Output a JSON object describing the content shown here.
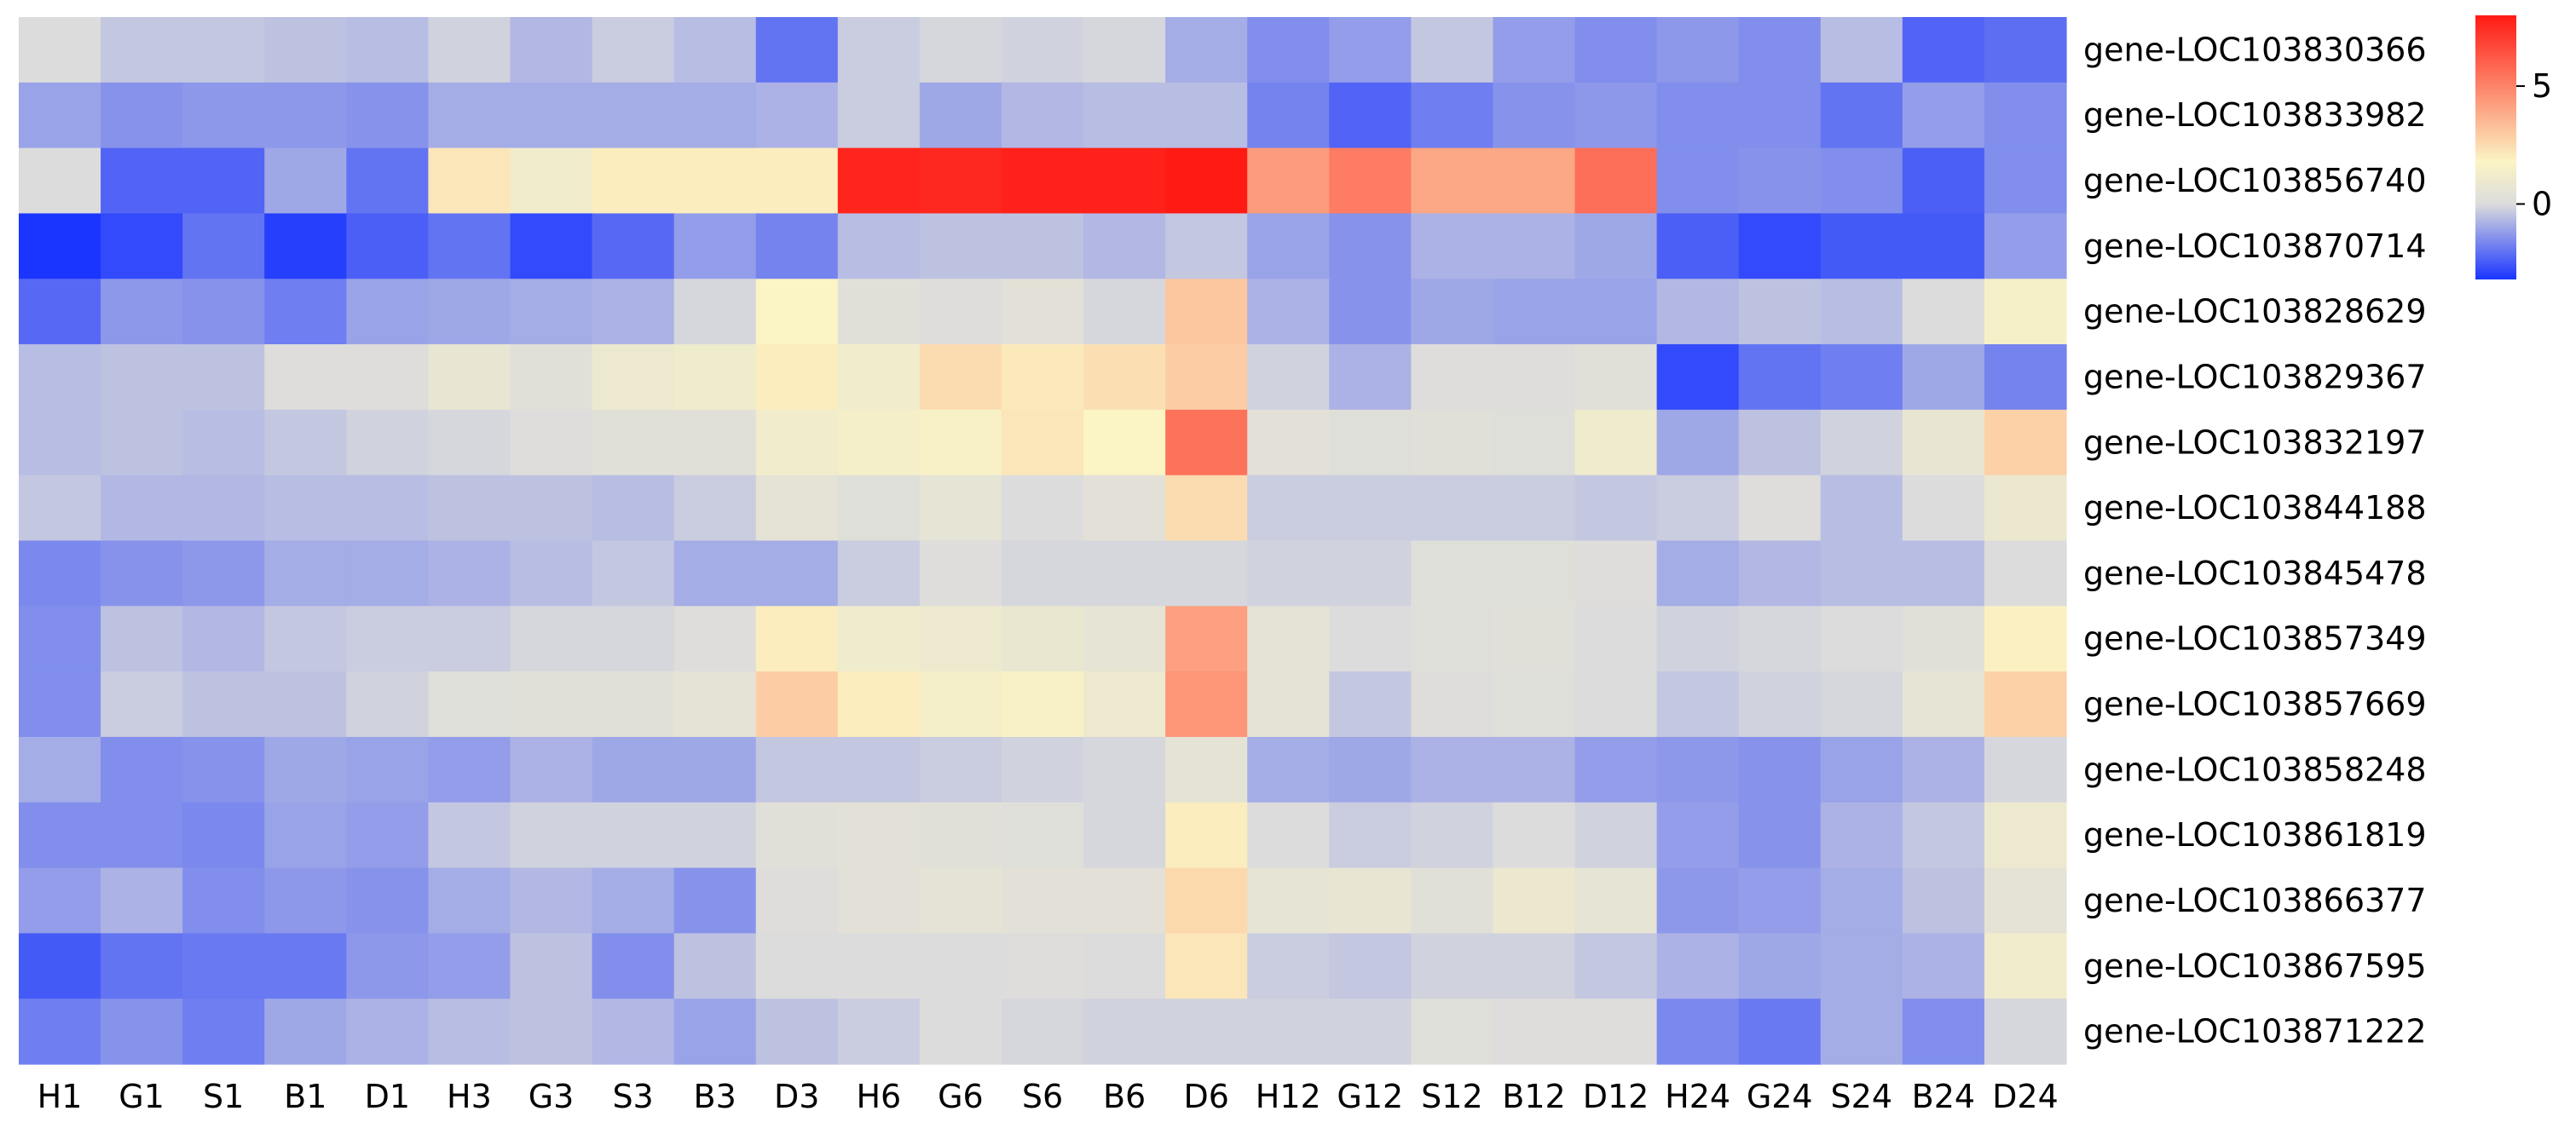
{
  "chart_data": {
    "type": "heatmap",
    "title": "",
    "xlabel": "",
    "ylabel": "",
    "columns": [
      "H1",
      "G1",
      "S1",
      "B1",
      "D1",
      "H3",
      "G3",
      "S3",
      "B3",
      "D3",
      "H6",
      "G6",
      "S6",
      "B6",
      "D6",
      "H12",
      "G12",
      "S12",
      "B12",
      "D12",
      "H24",
      "G24",
      "S24",
      "B24",
      "D24"
    ],
    "rows": [
      "gene-LOC103830366",
      "gene-LOC103833982",
      "gene-LOC103856740",
      "gene-LOC103870714",
      "gene-LOC103828629",
      "gene-LOC103829367",
      "gene-LOC103832197",
      "gene-LOC103844188",
      "gene-LOC103845478",
      "gene-LOC103857349",
      "gene-LOC103857669",
      "gene-LOC103858248",
      "gene-LOC103861819",
      "gene-LOC103866377",
      "gene-LOC103867595",
      "gene-LOC103871222"
    ],
    "values": [
      [
        0.0,
        -0.4,
        -0.4,
        -0.5,
        -0.6,
        -0.2,
        -0.7,
        -0.3,
        -0.6,
        -2.0,
        -0.3,
        -0.1,
        -0.2,
        -0.1,
        -0.9,
        -1.5,
        -1.2,
        -0.4,
        -1.2,
        -1.5,
        -1.3,
        -1.5,
        -0.6,
        -2.3,
        -2.1
      ],
      [
        -1.1,
        -1.4,
        -1.3,
        -1.3,
        -1.4,
        -0.9,
        -0.9,
        -0.9,
        -0.9,
        -0.8,
        -0.3,
        -1.0,
        -0.7,
        -0.6,
        -0.6,
        -1.7,
        -2.3,
        -1.8,
        -1.4,
        -1.3,
        -1.5,
        -1.5,
        -2.0,
        -1.2,
        -1.5
      ],
      [
        0.0,
        -2.3,
        -2.3,
        -1.0,
        -2.0,
        2.2,
        1.2,
        2.0,
        2.0,
        2.0,
        7.7,
        7.6,
        7.8,
        7.8,
        8.0,
        4.3,
        5.2,
        4.0,
        4.0,
        5.6,
        -1.5,
        -1.4,
        -1.5,
        -2.4,
        -1.5
      ],
      [
        -3.2,
        -2.8,
        -2.0,
        -3.0,
        -2.4,
        -2.0,
        -2.8,
        -2.2,
        -1.2,
        -1.7,
        -0.6,
        -0.5,
        -0.5,
        -0.7,
        -0.4,
        -1.1,
        -1.4,
        -0.8,
        -0.8,
        -1.0,
        -2.4,
        -2.8,
        -2.5,
        -2.5,
        -1.2
      ],
      [
        -2.2,
        -1.3,
        -1.4,
        -1.8,
        -1.1,
        -1.0,
        -0.9,
        -0.8,
        -0.1,
        1.8,
        0.3,
        0.1,
        0.4,
        -0.1,
        3.1,
        -0.8,
        -1.4,
        -1.0,
        -1.1,
        -1.1,
        -0.7,
        -0.5,
        -0.6,
        0.0,
        1.5
      ],
      [
        -0.6,
        -0.5,
        -0.5,
        0.1,
        0.1,
        0.7,
        0.3,
        1.0,
        1.1,
        2.0,
        1.2,
        2.5,
        2.1,
        2.4,
        2.9,
        -0.2,
        -0.8,
        0.1,
        0.1,
        0.3,
        -2.8,
        -2.0,
        -1.8,
        -1.0,
        -1.7
      ],
      [
        -0.6,
        -0.5,
        -0.6,
        -0.4,
        -0.2,
        -0.1,
        0.1,
        0.3,
        0.3,
        1.2,
        1.4,
        1.6,
        2.2,
        1.8,
        5.5,
        0.4,
        0.2,
        0.3,
        0.2,
        1.1,
        -1.0,
        -0.5,
        -0.2,
        0.7,
        2.8
      ],
      [
        -0.4,
        -0.7,
        -0.7,
        -0.6,
        -0.6,
        -0.5,
        -0.5,
        -0.6,
        -0.3,
        0.5,
        0.2,
        0.6,
        0.0,
        0.4,
        2.5,
        -0.3,
        -0.3,
        -0.3,
        -0.3,
        -0.4,
        -0.3,
        0.1,
        -0.6,
        0.0,
        0.9
      ],
      [
        -1.6,
        -1.4,
        -1.3,
        -0.9,
        -0.9,
        -0.8,
        -0.6,
        -0.4,
        -0.9,
        -0.9,
        -0.3,
        0.1,
        -0.1,
        -0.1,
        -0.1,
        -0.2,
        -0.2,
        0.2,
        0.2,
        0.1,
        -0.9,
        -0.7,
        -0.6,
        -0.6,
        0.0
      ],
      [
        -1.5,
        -0.5,
        -0.7,
        -0.4,
        -0.3,
        -0.3,
        -0.1,
        -0.1,
        0.1,
        2.0,
        1.1,
        1.0,
        0.8,
        0.6,
        4.2,
        0.5,
        0.0,
        0.2,
        0.3,
        0.0,
        -0.2,
        -0.1,
        0.0,
        0.3,
        1.9
      ],
      [
        -1.5,
        -0.3,
        -0.5,
        -0.5,
        -0.2,
        0.2,
        0.3,
        0.3,
        0.5,
        2.9,
        2.0,
        1.4,
        1.6,
        1.0,
        4.5,
        0.5,
        -0.4,
        0.1,
        0.2,
        0.0,
        -0.4,
        -0.2,
        -0.1,
        0.6,
        2.8
      ],
      [
        -0.9,
        -1.5,
        -1.4,
        -1.0,
        -1.1,
        -1.2,
        -0.8,
        -1.0,
        -1.0,
        -0.4,
        -0.4,
        -0.3,
        -0.2,
        -0.1,
        0.5,
        -0.9,
        -1.0,
        -0.8,
        -0.8,
        -1.2,
        -1.3,
        -1.4,
        -1.1,
        -0.8,
        -0.1
      ],
      [
        -1.5,
        -1.5,
        -1.6,
        -1.1,
        -1.2,
        -0.4,
        -0.2,
        -0.2,
        -0.2,
        0.3,
        0.4,
        0.3,
        0.2,
        -0.1,
        2.0,
        0.0,
        -0.3,
        -0.2,
        0.0,
        -0.2,
        -1.2,
        -1.4,
        -0.8,
        -0.4,
        1.0
      ],
      [
        -1.2,
        -0.8,
        -1.5,
        -1.3,
        -1.4,
        -0.9,
        -0.7,
        -0.9,
        -1.4,
        0.1,
        0.4,
        0.5,
        0.4,
        0.4,
        2.6,
        0.6,
        0.7,
        0.3,
        0.9,
        0.6,
        -1.3,
        -1.2,
        -0.9,
        -0.5,
        0.5
      ],
      [
        -2.5,
        -2.0,
        -1.9,
        -1.9,
        -1.3,
        -1.2,
        -0.5,
        -1.5,
        -0.5,
        0.0,
        0.0,
        0.0,
        0.1,
        0.0,
        2.2,
        -0.3,
        -0.4,
        -0.2,
        -0.2,
        -0.4,
        -0.8,
        -1.0,
        -0.9,
        -0.8,
        1.2
      ],
      [
        -1.8,
        -1.4,
        -1.8,
        -1.0,
        -0.8,
        -0.6,
        -0.5,
        -0.7,
        -1.1,
        -0.5,
        -0.3,
        0.0,
        -0.1,
        -0.2,
        -0.2,
        -0.2,
        -0.2,
        0.2,
        0.1,
        0.1,
        -1.6,
        -1.9,
        -0.9,
        -1.5,
        -0.1
      ]
    ],
    "color_range": [
      -3.2,
      8.0
    ],
    "colormap": [
      "#1a35ff",
      "#dcdcdc",
      "#fbf4c4",
      "#ff1a14"
    ],
    "colorbar_ticks": [
      5,
      0
    ],
    "colorbar_tick_labels": [
      "5",
      "0"
    ],
    "legend_placement": "top-right",
    "grid": false
  }
}
